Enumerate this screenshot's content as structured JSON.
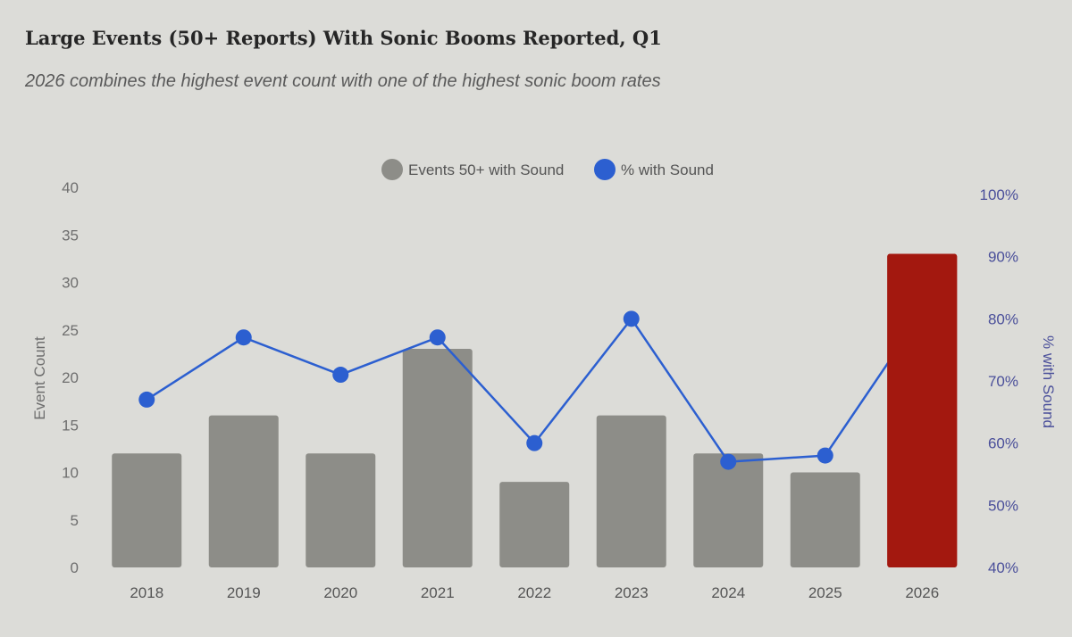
{
  "title": "Large Events (50+ Reports) With Sonic Booms Reported, Q1",
  "subtitle": "2026 combines the highest event count with one of the highest sonic boom rates",
  "colors": {
    "bar": "#8d8d88",
    "highlight": "#a3180f",
    "line": "#2c5fd0",
    "axis_left": "#6e6e6e",
    "axis_right": "#4a4f9a"
  },
  "chart_data": {
    "type": "bar",
    "categories": [
      "2018",
      "2019",
      "2020",
      "2021",
      "2022",
      "2023",
      "2024",
      "2025",
      "2026"
    ],
    "series": [
      {
        "name": "Events 50+ with Sound",
        "axis": "left",
        "type": "bar",
        "values": [
          12,
          16,
          12,
          23,
          9,
          16,
          12,
          10,
          33
        ]
      },
      {
        "name": "% with Sound",
        "axis": "right",
        "type": "line",
        "values": [
          67,
          77,
          71,
          77,
          60,
          80,
          57,
          58,
          81
        ]
      }
    ],
    "highlight_category": "2026",
    "ylabel": "Event Count",
    "ylim": [
      0,
      40
    ],
    "yticks": [
      "0",
      "5",
      "10",
      "15",
      "20",
      "25",
      "30",
      "35",
      "40"
    ],
    "y2label": "% with Sound",
    "y2lim": [
      40,
      100
    ],
    "y2ticks": [
      "40%",
      "50%",
      "60%",
      "70%",
      "80%",
      "90%",
      "100%"
    ],
    "legend": {
      "position": "top-center",
      "items": [
        "Events 50+ with Sound",
        "% with Sound"
      ]
    },
    "grid": false
  }
}
